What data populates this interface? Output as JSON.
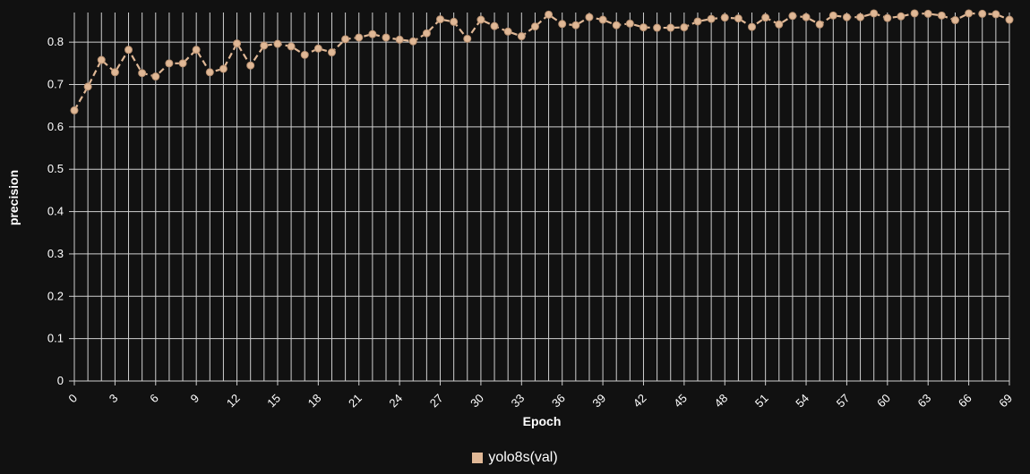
{
  "chart_data": {
    "type": "line",
    "xlabel": "Epoch",
    "ylabel": "precision",
    "x": [
      0,
      1,
      2,
      3,
      4,
      5,
      6,
      7,
      8,
      9,
      10,
      11,
      12,
      13,
      14,
      15,
      16,
      17,
      18,
      19,
      20,
      21,
      22,
      23,
      24,
      25,
      26,
      27,
      28,
      29,
      30,
      31,
      32,
      33,
      34,
      35,
      36,
      37,
      38,
      39,
      40,
      41,
      42,
      43,
      44,
      45,
      46,
      47,
      48,
      49,
      50,
      51,
      52,
      53,
      54,
      55,
      56,
      57,
      58,
      59,
      60,
      61,
      62,
      63,
      64,
      65,
      66,
      67,
      68,
      69
    ],
    "xlim": [
      0,
      69
    ],
    "ylim": [
      0,
      0.87
    ],
    "yticks": [
      0,
      0.1,
      0.2,
      0.3,
      0.4,
      0.5,
      0.6,
      0.7,
      0.8
    ],
    "xticks": [
      0,
      3,
      6,
      9,
      12,
      15,
      18,
      21,
      24,
      27,
      30,
      33,
      36,
      39,
      42,
      45,
      48,
      51,
      54,
      57,
      60,
      63,
      66,
      69
    ],
    "grid": true,
    "legend_position": "bottom-center",
    "series": [
      {
        "name": "yolo8s(val)",
        "color": "#e0b896",
        "line_style": "dashed",
        "marker": "circle",
        "values": [
          0.639,
          0.695,
          0.758,
          0.729,
          0.782,
          0.727,
          0.719,
          0.75,
          0.75,
          0.782,
          0.729,
          0.737,
          0.797,
          0.745,
          0.792,
          0.796,
          0.79,
          0.77,
          0.785,
          0.776,
          0.807,
          0.811,
          0.819,
          0.811,
          0.806,
          0.802,
          0.821,
          0.854,
          0.848,
          0.808,
          0.853,
          0.838,
          0.825,
          0.814,
          0.837,
          0.865,
          0.843,
          0.84,
          0.859,
          0.853,
          0.84,
          0.844,
          0.835,
          0.834,
          0.834,
          0.835,
          0.849,
          0.855,
          0.858,
          0.856,
          0.836,
          0.858,
          0.842,
          0.862,
          0.859,
          0.842,
          0.863,
          0.859,
          0.859,
          0.868,
          0.857,
          0.861,
          0.868,
          0.867,
          0.863,
          0.852,
          0.868,
          0.867,
          0.866,
          0.853
        ]
      }
    ]
  }
}
